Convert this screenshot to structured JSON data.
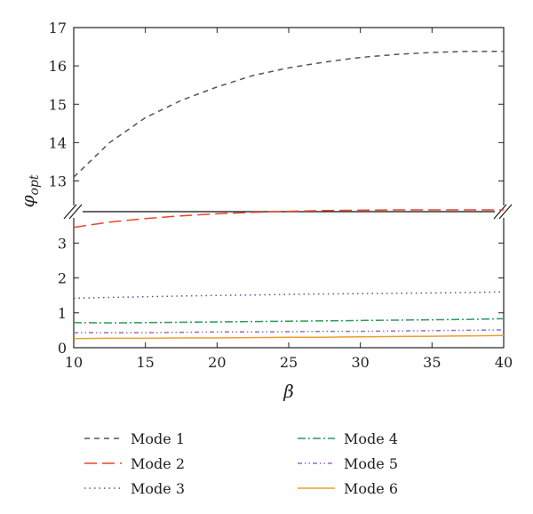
{
  "chart_data": {
    "type": "line",
    "title": "",
    "xlabel": "β",
    "ylabel": "φ",
    "ylabel_sub": "opt",
    "xlim": [
      10,
      40
    ],
    "y_upper_range": [
      12.2,
      17
    ],
    "y_lower_range": [
      0,
      3.9
    ],
    "broken_y_axis": true,
    "grid": false,
    "legend_position": "bottom",
    "x_ticks": [
      "10",
      "15",
      "20",
      "25",
      "30",
      "35",
      "40"
    ],
    "y_upper_ticks": [
      "13",
      "14",
      "15",
      "16",
      "17"
    ],
    "y_lower_ticks": [
      "0",
      "1",
      "2",
      "3"
    ],
    "x": [
      10,
      12.5,
      15,
      17.5,
      20,
      22.5,
      25,
      27.5,
      30,
      32.5,
      35,
      37.5,
      40
    ],
    "series": [
      {
        "name": "Mode 1",
        "color": "#555555",
        "dash": "6,5",
        "values": [
          13.1,
          14.0,
          14.65,
          15.1,
          15.45,
          15.75,
          15.95,
          16.1,
          16.22,
          16.3,
          16.35,
          16.38,
          16.38
        ]
      },
      {
        "name": "Mode 2",
        "color": "#e8442e",
        "dash": "14,6",
        "values": [
          3.45,
          3.6,
          3.7,
          3.78,
          3.84,
          3.88,
          3.91,
          3.93,
          3.94,
          3.95,
          3.95,
          3.95,
          3.95
        ]
      },
      {
        "name": "Mode 3",
        "color": "#4a5a9a",
        "dash": "1.5,4",
        "values": [
          1.42,
          1.44,
          1.46,
          1.48,
          1.5,
          1.51,
          1.53,
          1.54,
          1.55,
          1.56,
          1.57,
          1.58,
          1.6
        ]
      },
      {
        "name": "Mode 4",
        "color": "#2e9a5a",
        "dash": "9,3,2,3",
        "values": [
          0.72,
          0.71,
          0.72,
          0.73,
          0.74,
          0.75,
          0.76,
          0.77,
          0.78,
          0.79,
          0.8,
          0.81,
          0.83
        ]
      },
      {
        "name": "Mode 5",
        "color": "#9a6ac8",
        "dash": "5,3,1.5,3,1.5,3",
        "values": [
          0.43,
          0.43,
          0.43,
          0.44,
          0.45,
          0.45,
          0.46,
          0.47,
          0.47,
          0.48,
          0.49,
          0.5,
          0.51
        ]
      },
      {
        "name": "Mode 6",
        "color": "#e8a030",
        "dash": "",
        "values": [
          0.26,
          0.27,
          0.27,
          0.28,
          0.28,
          0.29,
          0.3,
          0.3,
          0.31,
          0.32,
          0.33,
          0.34,
          0.35
        ]
      }
    ]
  }
}
